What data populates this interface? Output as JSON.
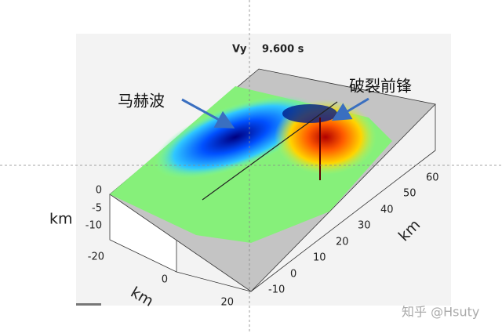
{
  "title": "Vy",
  "time": "9.600 s",
  "annotations": [
    "马赫波",
    "破裂前锋"
  ],
  "axes": {
    "z": {
      "label": "km",
      "ticks": [
        "0",
        "-5",
        "-10"
      ]
    },
    "x": {
      "label": "km",
      "ticks": [
        "-20",
        "0",
        "20"
      ]
    },
    "y": {
      "label": "km",
      "ticks": [
        "-10",
        "0",
        "10",
        "20",
        "30",
        "40",
        "50",
        "60"
      ]
    }
  },
  "watermark": "知乎 @Hsuty"
}
